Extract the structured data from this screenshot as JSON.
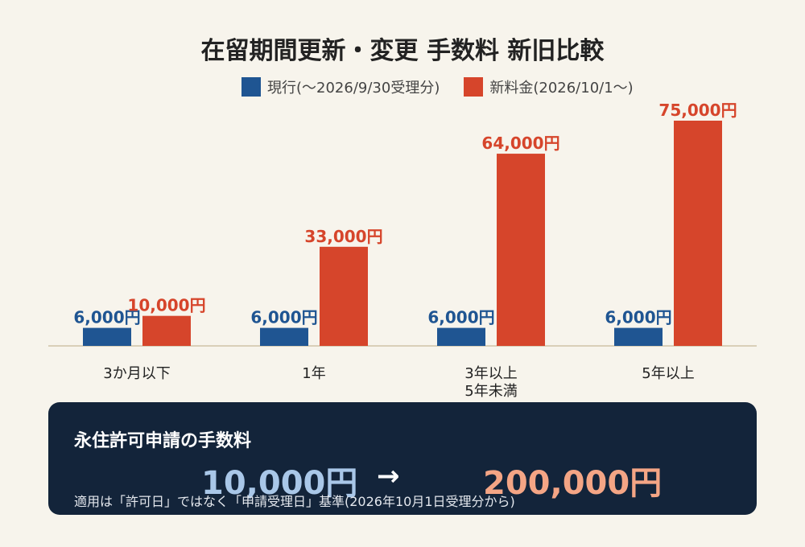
{
  "chart_data": {
    "type": "bar",
    "title": "在留期間更新・変更 手数料 新旧比較",
    "categories": [
      "3か月以下",
      "1年",
      "3年以上\n5年未満",
      "5年以上"
    ],
    "series": [
      {
        "name": "現行(〜2026/9/30受理分)",
        "values": [
          6000,
          6000,
          6000,
          6000
        ],
        "labels": [
          "6,000円",
          "6,000円",
          "6,000円",
          "6,000円"
        ],
        "color": "#1f5592"
      },
      {
        "name": "新料金(2026/10/1〜)",
        "values": [
          10000,
          33000,
          64000,
          75000
        ],
        "labels": [
          "10,000円",
          "33,000円",
          "64,000円",
          "75,000円"
        ],
        "color": "#d6452b"
      }
    ],
    "ylim": [
      0,
      75000
    ],
    "grid": false,
    "legend": "top-right"
  },
  "permanent_residence": {
    "title": "永住許可申請の手数料",
    "old_fee": "10,000円",
    "arrow": "→",
    "new_fee": "200,000円",
    "note": "適用は「許可日」ではなく「申請受理日」基準(2026年10月1日受理分から)"
  },
  "colors": {
    "background": "#f7f4ec",
    "current": "#1f5592",
    "new": "#d6452b",
    "panel": "#13243a"
  }
}
